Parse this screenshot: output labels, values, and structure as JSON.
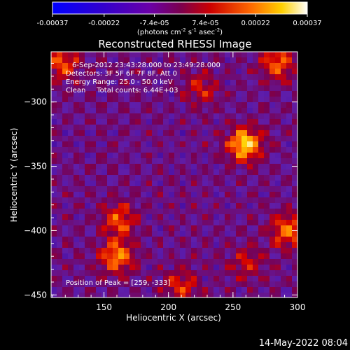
{
  "colorbar": {
    "ticks": [
      "-0.00037",
      "-0.00022",
      "-7.4e-05",
      "7.4e-05",
      "0.00022",
      "0.00037"
    ],
    "tick_values": [
      -0.00037,
      -0.00022,
      -7.4e-05,
      7.4e-05,
      0.00022,
      0.00037
    ],
    "range": [
      -0.00037,
      0.00037
    ],
    "units_main": "(photons cm",
    "units_sup1": "-2",
    "units_mid": " s",
    "units_sup2": "-1",
    "units_end": " asec",
    "units_sup3": "-2",
    "units_close": ")"
  },
  "title": "Reconstructed RHESSI Image",
  "annotations": [
    "6-Sep-2012 23:43:28.000 to 23:49:28.000",
    "Detectors: 3F 5F 6F 7F 8F, Att 0",
    "Energy Range: 25.0 - 50.0 keV",
    "Clean     Total counts: 6.44E+03"
  ],
  "peak_label": "Position of Peak = [259, -333]",
  "timestamp": "14-May-2022 08:04",
  "chart_data": {
    "type": "heatmap",
    "title": "Reconstructed RHESSI Image",
    "xlabel": "Heliocentric X (arcsec)",
    "ylabel": "Heliocentric Y (arcsec)",
    "xlim": [
      109,
      300
    ],
    "ylim": [
      -452,
      -261
    ],
    "x_ticks": [
      150,
      200,
      250,
      300
    ],
    "x_tick_labels": [
      "150",
      "200",
      "250",
      "300"
    ],
    "y_ticks": [
      -450,
      -400,
      -350,
      -300
    ],
    "y_tick_labels": [
      "−450",
      "−400",
      "−350",
      "−300"
    ],
    "colormap": "rainbow-to-white (blue, purple, red, orange, yellow, white)",
    "peak": [
      259,
      -333
    ],
    "sources": [
      {
        "x": 259,
        "y": -333,
        "value": 0.00037
      },
      {
        "x": 160,
        "y": -420,
        "value": 0.00028
      },
      {
        "x": 162,
        "y": -392,
        "value": 0.00022
      },
      {
        "x": 118,
        "y": -270,
        "value": 0.00022
      },
      {
        "x": 285,
        "y": -270,
        "value": 0.00024
      },
      {
        "x": 292,
        "y": -400,
        "value": 0.00026
      },
      {
        "x": 210,
        "y": -443,
        "value": 0.00018
      },
      {
        "x": 225,
        "y": -290,
        "value": 0.00015
      },
      {
        "x": 260,
        "y": -425,
        "value": 0.00014
      }
    ]
  }
}
